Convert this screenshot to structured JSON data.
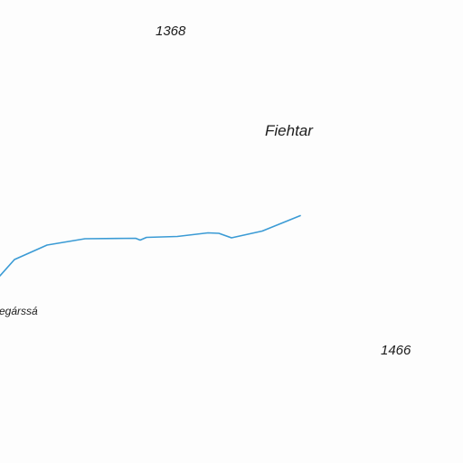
{
  "map": {
    "background_color": "#fdfdfd",
    "labels": {
      "elevation_top": "1368",
      "place_name": "Fiehtar",
      "river_name": "egárssá",
      "elevation_bottom_right": "1466"
    },
    "features": [
      {
        "type": "river",
        "color": "#3b9bd5"
      }
    ]
  }
}
